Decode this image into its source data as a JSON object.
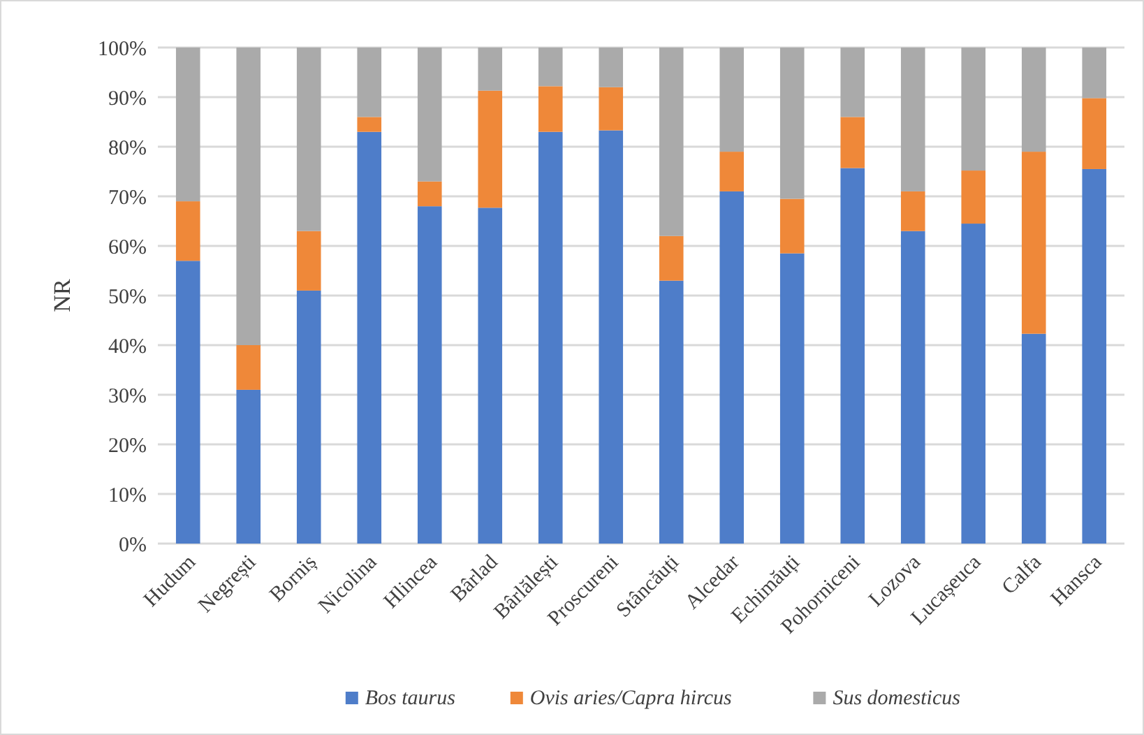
{
  "chart_data": {
    "type": "bar",
    "stacked": true,
    "ylabel": "NR",
    "categories": [
      "Hudum",
      "Negrești",
      "Borniș",
      "Nicolina",
      "Hlincea",
      "Bârlad",
      "Bârlălești",
      "Proscureni",
      "Stâncăuți",
      "Alcedar",
      "Echimăuți",
      "Pohorniceni",
      "Lozova",
      "Lucașeuca",
      "Calfa",
      "Hansca"
    ],
    "series": [
      {
        "name": "Bos taurus",
        "color": "#4e7dc9",
        "values": [
          57,
          31,
          51,
          83,
          68,
          67.7,
          83,
          83.3,
          53,
          71,
          58.5,
          75.7,
          63,
          64.5,
          42.3,
          75.5
        ]
      },
      {
        "name": "Ovis aries/Capra hircus",
        "color": "#ef8839",
        "values": [
          12,
          9,
          12,
          3,
          5,
          23.6,
          9.2,
          8.7,
          9,
          8,
          11,
          10.3,
          8,
          10.7,
          36.7,
          14.3
        ]
      },
      {
        "name": "Sus domesticus",
        "color": "#aaaaaa",
        "values": [
          31,
          60,
          37,
          14,
          27,
          8.7,
          7.8,
          8,
          38,
          21,
          30.5,
          14,
          29,
          24.8,
          21,
          10.2
        ]
      }
    ],
    "ylim": [
      0,
      100
    ],
    "yticks": [
      {
        "value": 0,
        "label": "0%"
      },
      {
        "value": 10,
        "label": "10%"
      },
      {
        "value": 20,
        "label": "20%"
      },
      {
        "value": 30,
        "label": "30%"
      },
      {
        "value": 40,
        "label": "40%"
      },
      {
        "value": 50,
        "label": "50%"
      },
      {
        "value": 60,
        "label": "60%"
      },
      {
        "value": 70,
        "label": "70%"
      },
      {
        "value": 80,
        "label": "80%"
      },
      {
        "value": 90,
        "label": "90%"
      },
      {
        "value": 100,
        "label": "100%"
      }
    ],
    "grid": "y",
    "legend": "bottom"
  }
}
